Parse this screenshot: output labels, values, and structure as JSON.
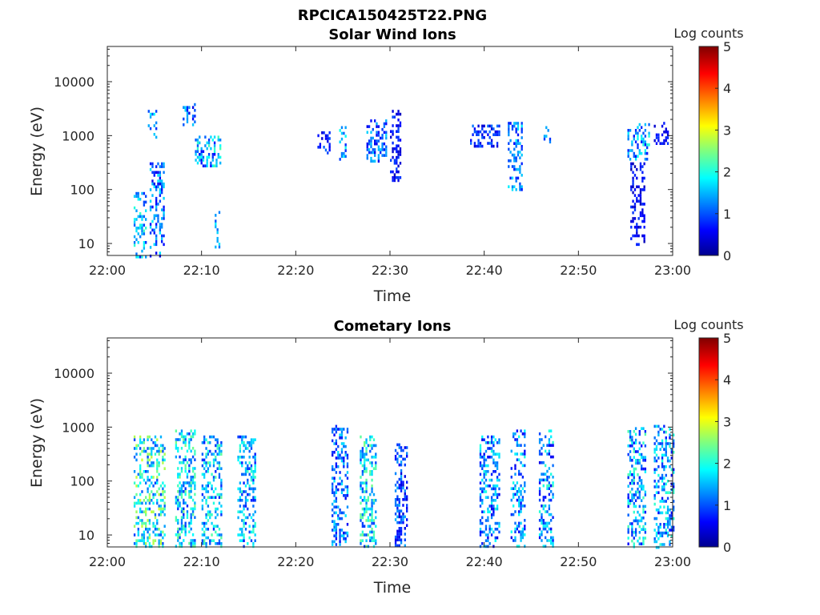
{
  "figure": {
    "title": "RPCICA150425T22.PNG"
  },
  "chart_data": [
    {
      "type": "heatmap",
      "title": "Solar Wind Ions",
      "xlabel": "Time",
      "ylabel": "Energy (eV)",
      "x_ticks": [
        "22:00",
        "22:10",
        "22:20",
        "22:30",
        "22:40",
        "22:50",
        "23:00"
      ],
      "x_range_minutes": [
        0,
        60
      ],
      "y_scale": "log",
      "y_ticks": [
        "10",
        "100",
        "1000",
        "10000"
      ],
      "y_tick_values": [
        10,
        100,
        1000,
        10000
      ],
      "ylim": [
        6,
        45000
      ],
      "colorbar": {
        "label": "Log counts",
        "ticks": [
          "0",
          "1",
          "2",
          "3",
          "4",
          "5"
        ],
        "range": [
          0,
          5
        ],
        "colormap": "jet"
      },
      "grid": false,
      "bursts": [
        {
          "t": [
            2.8,
            4.0
          ],
          "e": [
            6,
            90
          ],
          "c": [
            0.8,
            2.2
          ]
        },
        {
          "t": [
            4.5,
            6.0
          ],
          "e": [
            6,
            320
          ],
          "c": [
            0.5,
            1.8
          ]
        },
        {
          "t": [
            4.3,
            5.2
          ],
          "e": [
            900,
            3000
          ],
          "c": [
            0.6,
            1.9
          ]
        },
        {
          "t": [
            8.0,
            9.2
          ],
          "e": [
            1500,
            4000
          ],
          "c": [
            0.5,
            1.8
          ]
        },
        {
          "t": [
            9.3,
            12.0
          ],
          "e": [
            280,
            1000
          ],
          "c": [
            0.6,
            2.3
          ]
        },
        {
          "t": [
            11.4,
            11.8
          ],
          "e": [
            8,
            40
          ],
          "c": [
            1.0,
            1.8
          ]
        },
        {
          "t": [
            22.3,
            23.6
          ],
          "e": [
            500,
            1200
          ],
          "c": [
            0.4,
            1.2
          ]
        },
        {
          "t": [
            24.6,
            25.2
          ],
          "e": [
            350,
            1500
          ],
          "c": [
            0.7,
            2.0
          ]
        },
        {
          "t": [
            27.5,
            29.5
          ],
          "e": [
            350,
            2000
          ],
          "c": [
            0.5,
            1.7
          ]
        },
        {
          "t": [
            30.0,
            31.0
          ],
          "e": [
            150,
            3000
          ],
          "c": [
            0.3,
            1.0
          ]
        },
        {
          "t": [
            38.5,
            41.5
          ],
          "e": [
            600,
            1600
          ],
          "c": [
            0.4,
            1.2
          ]
        },
        {
          "t": [
            42.5,
            44.0
          ],
          "e": [
            100,
            1800
          ],
          "c": [
            0.6,
            1.9
          ]
        },
        {
          "t": [
            46.3,
            47.0
          ],
          "e": [
            800,
            1500
          ],
          "c": [
            0.6,
            1.6
          ]
        },
        {
          "t": [
            55.2,
            57.5
          ],
          "e": [
            350,
            1700
          ],
          "c": [
            0.7,
            2.1
          ]
        },
        {
          "t": [
            55.5,
            57.0
          ],
          "e": [
            10,
            320
          ],
          "c": [
            0.2,
            0.9
          ]
        },
        {
          "t": [
            58.0,
            59.5
          ],
          "e": [
            700,
            1800
          ],
          "c": [
            0.2,
            0.9
          ]
        }
      ]
    },
    {
      "type": "heatmap",
      "title": "Cometary Ions",
      "xlabel": "Time",
      "ylabel": "Energy (eV)",
      "x_ticks": [
        "22:00",
        "22:10",
        "22:20",
        "22:30",
        "22:40",
        "22:50",
        "23:00"
      ],
      "x_range_minutes": [
        0,
        60
      ],
      "y_scale": "log",
      "y_ticks": [
        "10",
        "100",
        "1000",
        "10000"
      ],
      "y_tick_values": [
        10,
        100,
        1000,
        10000
      ],
      "ylim": [
        6,
        45000
      ],
      "colorbar": {
        "label": "Log counts",
        "ticks": [
          "0",
          "1",
          "2",
          "3",
          "4",
          "5"
        ],
        "range": [
          0,
          5
        ],
        "colormap": "jet"
      },
      "grid": false,
      "bursts": [
        {
          "t": [
            2.8,
            6.0
          ],
          "e": [
            6,
            700
          ],
          "c": [
            0.9,
            2.9
          ]
        },
        {
          "t": [
            7.2,
            9.3
          ],
          "e": [
            6,
            900
          ],
          "c": [
            0.8,
            2.5
          ]
        },
        {
          "t": [
            10.0,
            12.0
          ],
          "e": [
            6,
            700
          ],
          "c": [
            0.8,
            2.4
          ]
        },
        {
          "t": [
            13.8,
            15.6
          ],
          "e": [
            6,
            700
          ],
          "c": [
            0.7,
            2.2
          ]
        },
        {
          "t": [
            23.8,
            25.5
          ],
          "e": [
            7,
            1100
          ],
          "c": [
            0.5,
            1.8
          ]
        },
        {
          "t": [
            26.8,
            28.4
          ],
          "e": [
            6,
            700
          ],
          "c": [
            0.9,
            2.5
          ]
        },
        {
          "t": [
            30.5,
            31.8
          ],
          "e": [
            6,
            500
          ],
          "c": [
            0.4,
            1.5
          ]
        },
        {
          "t": [
            39.5,
            41.5
          ],
          "e": [
            6,
            700
          ],
          "c": [
            0.5,
            2.1
          ]
        },
        {
          "t": [
            42.8,
            44.3
          ],
          "e": [
            6,
            900
          ],
          "c": [
            0.5,
            2.0
          ]
        },
        {
          "t": [
            45.8,
            47.2
          ],
          "e": [
            6,
            900
          ],
          "c": [
            0.5,
            2.2
          ]
        },
        {
          "t": [
            55.2,
            57.0
          ],
          "e": [
            6,
            1000
          ],
          "c": [
            0.6,
            2.3
          ]
        },
        {
          "t": [
            58.0,
            60.0
          ],
          "e": [
            6,
            1100
          ],
          "c": [
            0.6,
            2.2
          ]
        }
      ]
    }
  ]
}
